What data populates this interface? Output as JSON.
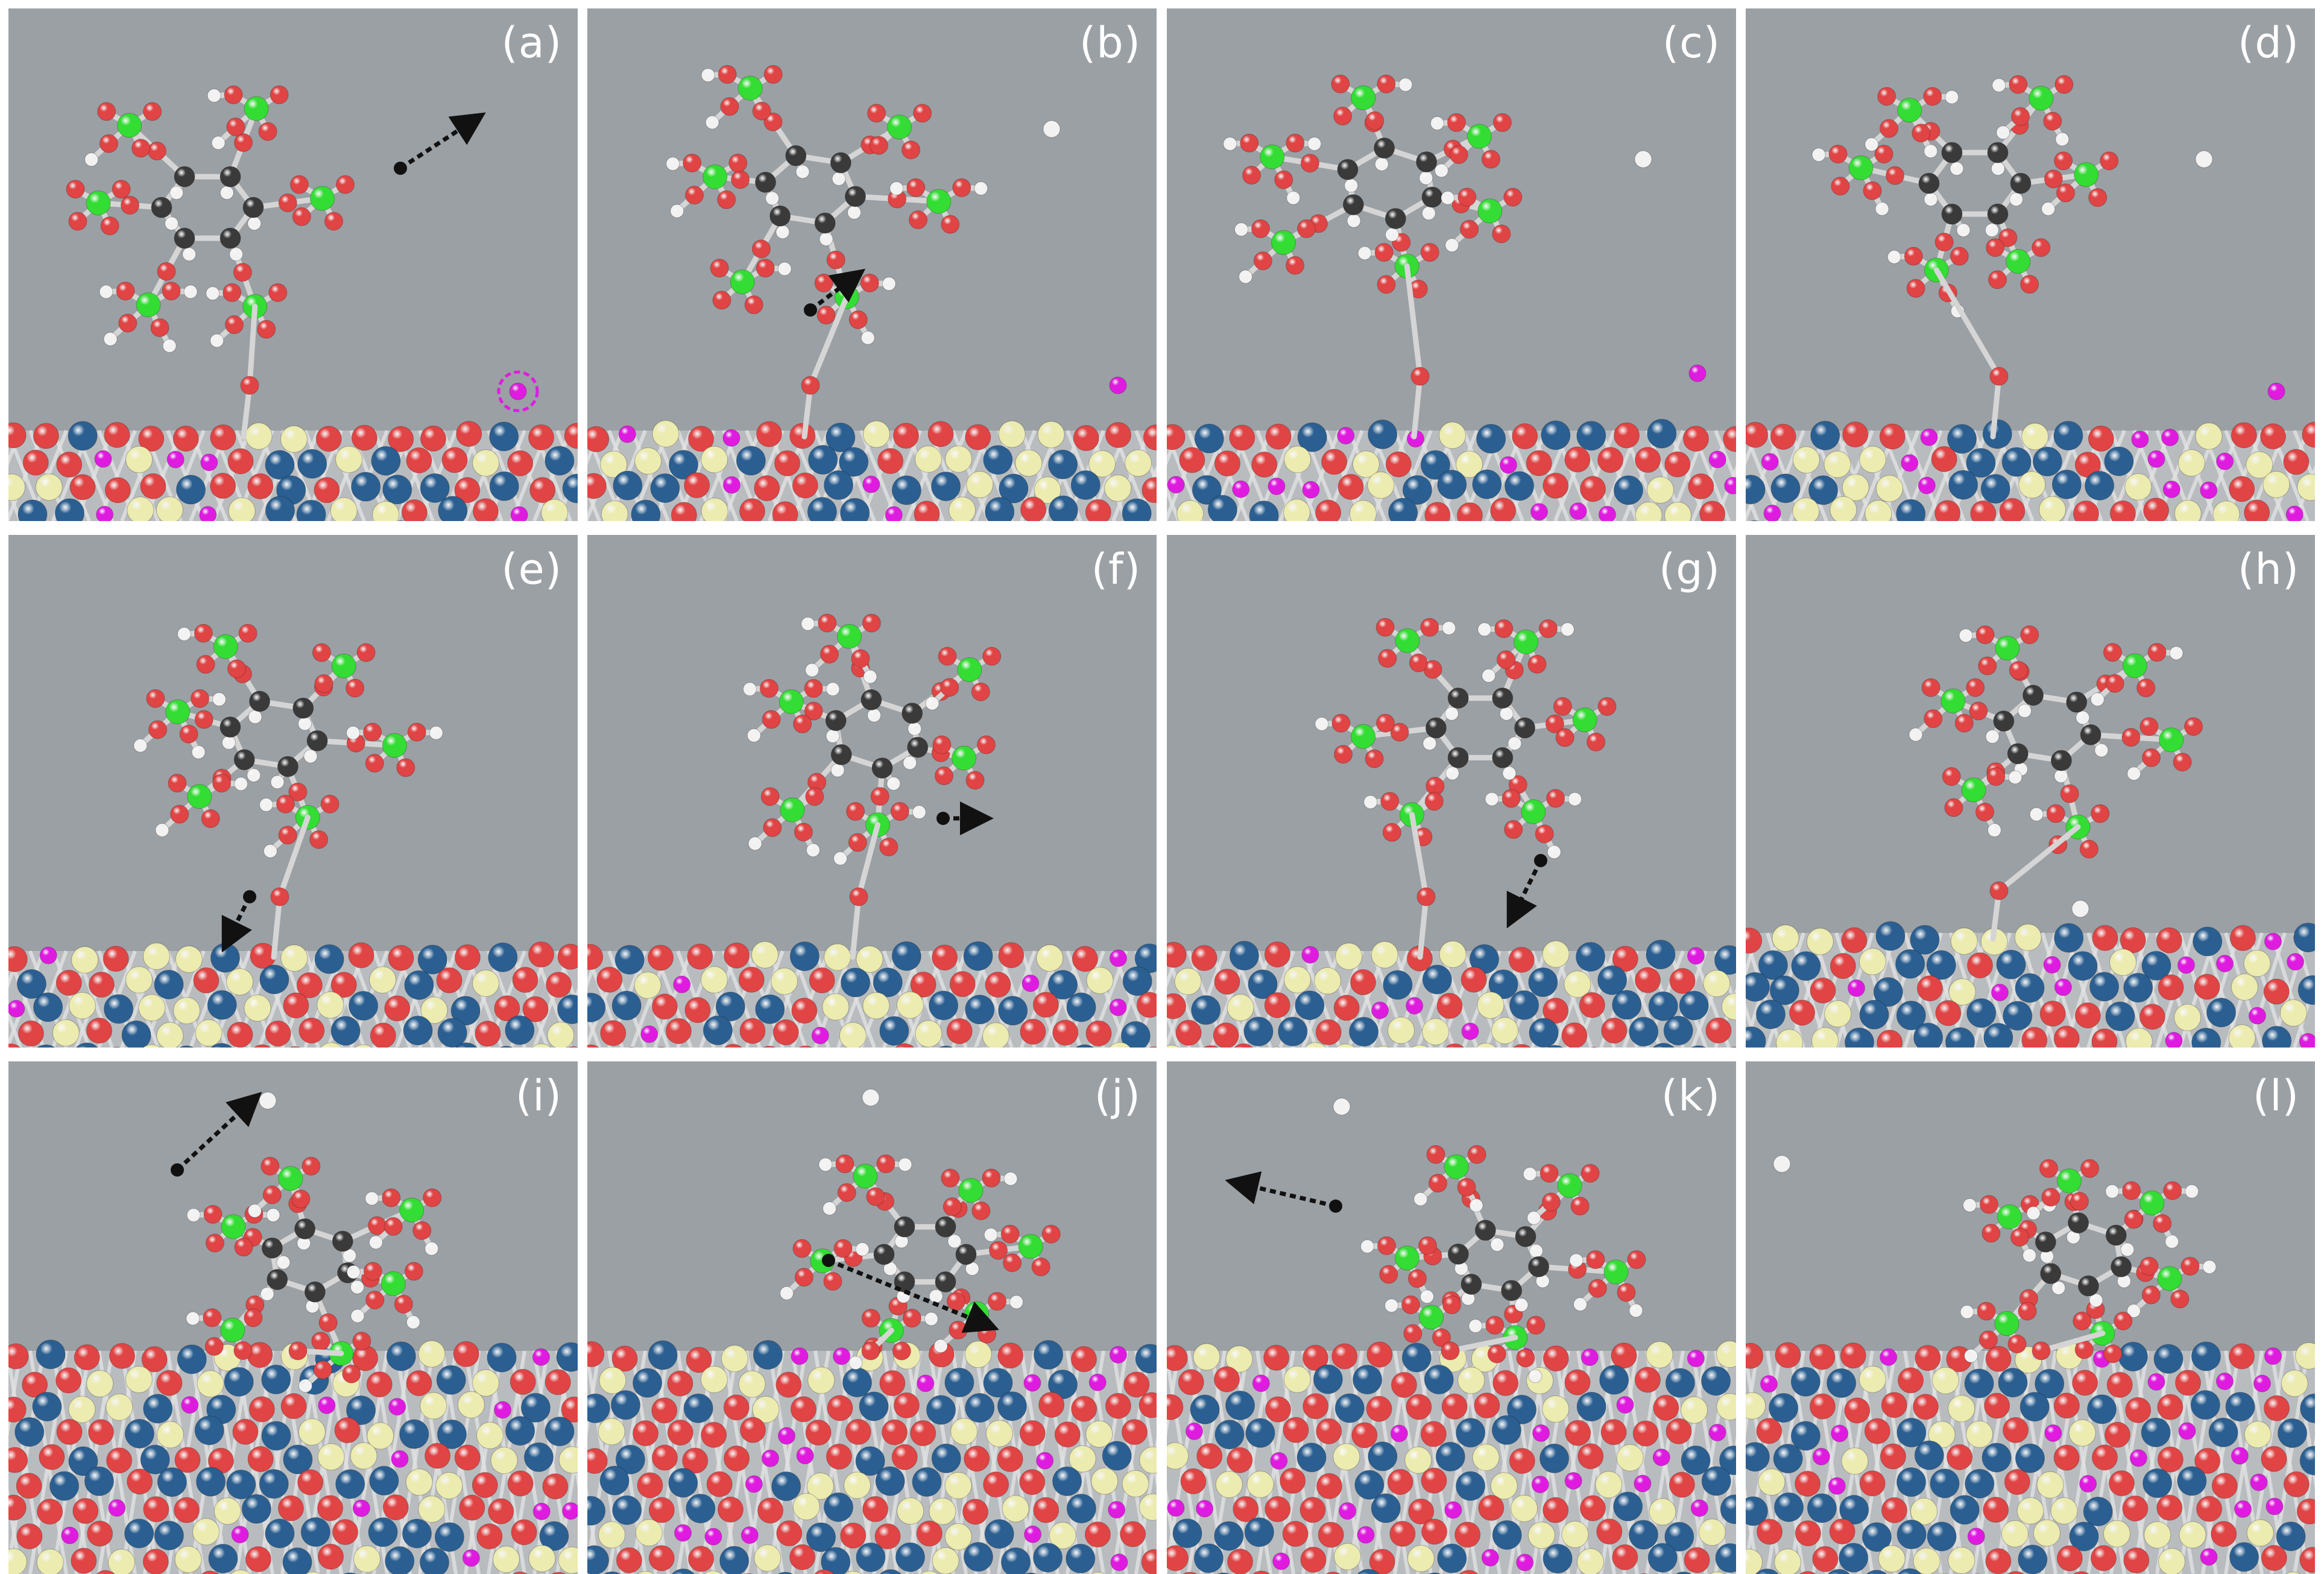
{
  "figure": {
    "panels": [
      {
        "label": "(a)"
      },
      {
        "label": "(b)"
      },
      {
        "label": "(c)"
      },
      {
        "label": "(d)"
      },
      {
        "label": "(e)"
      },
      {
        "label": "(f)"
      },
      {
        "label": "(g)"
      },
      {
        "label": "(h)"
      },
      {
        "label": "(i)"
      },
      {
        "label": "(j)"
      },
      {
        "label": "(k)"
      },
      {
        "label": "(l)"
      }
    ]
  },
  "colors": {
    "background": "#9ba0a4",
    "carbon": "#3a3a3a",
    "oxygen": "#e04444",
    "hydrogen": "#f2f2f2",
    "phosphorus": "#33dd33",
    "slab_blue": "#2b5f91",
    "slab_yellow": "#ecebb0",
    "slab_magenta": "#e01be0",
    "bond": "#d5d5d5",
    "arrow": "#111111"
  }
}
